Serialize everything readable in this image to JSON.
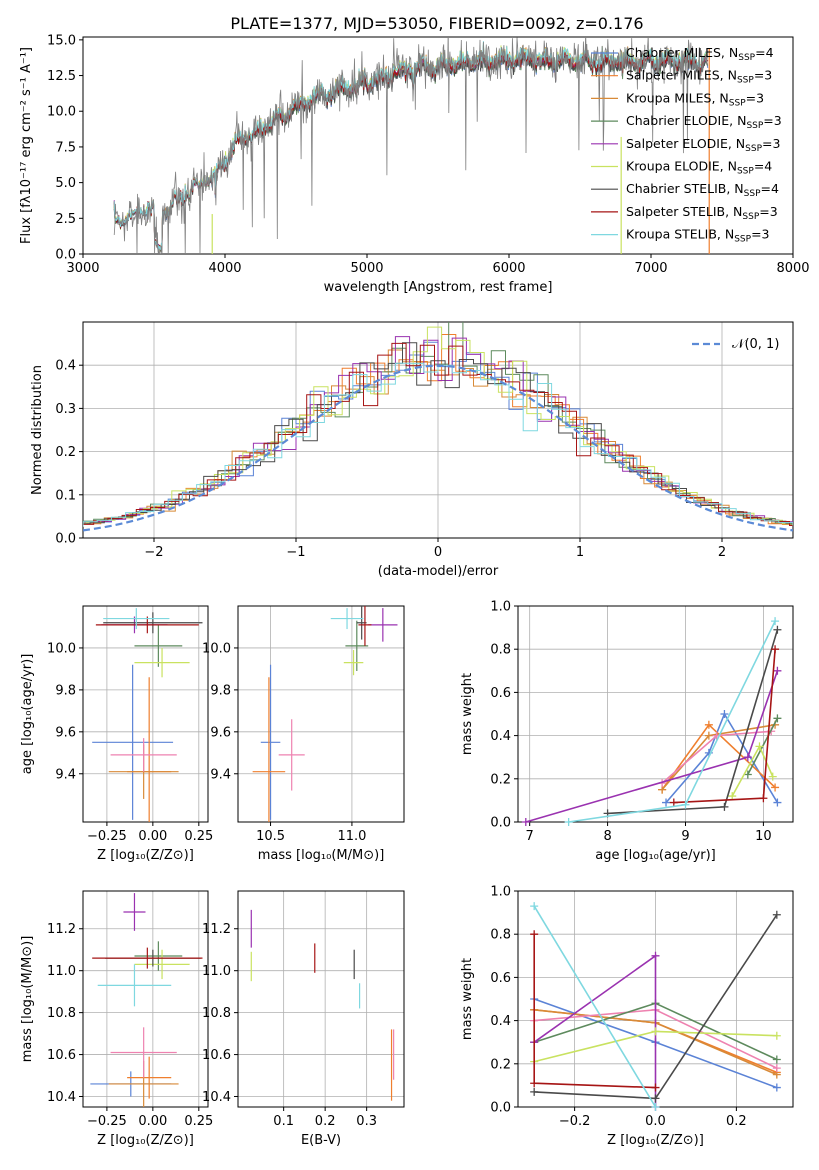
{
  "figure_title": "PLATE=1377, MJD=53050, FIBERID=0092, z=0.176",
  "colors": {
    "Chabrier MILES": "#5b83d6",
    "Salpeter MILES": "#ef7f2e",
    "Kroupa MILES": "#d88a38",
    "Chabrier ELODIE": "#5d8a5d",
    "Salpeter ELODIE": "#9a32b0",
    "Kroupa ELODIE": "#c9e260",
    "Chabrier STELIB": "#4a4a4a",
    "Salpeter STELIB": "#a61515",
    "Kroupa STELIB": "#7fd8e0",
    "data": "#808080",
    "pink": "#ee82b0",
    "normal": "#5b8ad6",
    "grid": "#b0b0b0"
  },
  "chart_data": [
    {
      "type": "line",
      "title": "PLATE=1377, MJD=53050, FIBERID=0092, z=0.176",
      "xlabel": "wavelength [Angstrom, rest frame]",
      "ylabel": "Flux [fλ10⁻¹⁷ erg cm⁻² s⁻¹ A⁻¹]",
      "xlim": [
        3000,
        8000
      ],
      "ylim": [
        0,
        15.2
      ],
      "xticks": [
        "3000",
        "4000",
        "5000",
        "6000",
        "7000",
        "8000"
      ],
      "yticks": [
        "0.0",
        "2.5",
        "5.0",
        "7.5",
        "10.0",
        "12.5",
        "15.0"
      ],
      "legend_position": "right",
      "continuum": {
        "x": [
          3220,
          3400,
          3500,
          3600,
          3700,
          3800,
          3900,
          4000,
          4100,
          4200,
          4300,
          4400,
          4500,
          4600,
          4700,
          4800,
          4900,
          5000,
          5100,
          5200,
          5300,
          5400,
          5500,
          5600,
          5700,
          5800,
          5900,
          6000,
          6100,
          6200,
          6300,
          6400,
          6500,
          6600,
          6700,
          6800,
          7000,
          7200,
          7400
        ],
        "y": [
          2.3,
          3.0,
          3.1,
          3.1,
          4.0,
          4.8,
          5.3,
          6.5,
          8.0,
          8.5,
          9.1,
          9.8,
          10.4,
          10.9,
          11.3,
          11.6,
          11.9,
          12.2,
          12.4,
          12.8,
          13.0,
          13.2,
          13.3,
          13.4,
          13.5,
          13.6,
          13.6,
          13.7,
          13.8,
          13.7,
          13.6,
          13.7,
          13.6,
          13.6,
          13.6,
          13.6,
          13.6,
          13.6,
          13.5
        ]
      },
      "series": [
        {
          "name": "Chabrier MILES",
          "nssp": "4"
        },
        {
          "name": "Salpeter MILES",
          "nssp": "3"
        },
        {
          "name": "Kroupa MILES",
          "nssp": "3"
        },
        {
          "name": "Chabrier ELODIE",
          "nssp": "3"
        },
        {
          "name": "Salpeter ELODIE",
          "nssp": "3"
        },
        {
          "name": "Kroupa ELODIE",
          "nssp": "4"
        },
        {
          "name": "Chabrier STELIB",
          "nssp": "4"
        },
        {
          "name": "Salpeter STELIB",
          "nssp": "3"
        },
        {
          "name": "Kroupa STELIB",
          "nssp": "3"
        }
      ]
    },
    {
      "type": "line",
      "xlabel": "(data-model)/error",
      "ylabel": "Normed distribution",
      "xlim": [
        -2.5,
        2.5
      ],
      "ylim": [
        0,
        0.5
      ],
      "xticks": [
        "−2",
        "−1",
        "0",
        "1",
        "2"
      ],
      "yticks": [
        "0.0",
        "0.1",
        "0.2",
        "0.3",
        "0.4"
      ],
      "legend_label": "𝒩(0, 1)",
      "legend_position": "top-right",
      "bin_width": 0.1
    },
    {
      "type": "scatter",
      "xlabel": "Z [log₁₀(Z/Z⊙)]",
      "ylabel": "age  [log₁₀(age/yr)]",
      "xlim": [
        -0.38,
        0.3
      ],
      "ylim": [
        9.17,
        10.2
      ],
      "xticks": [
        "−0.25",
        "0.00",
        "0.25"
      ],
      "xtick_values": [
        -0.25,
        0,
        0.25
      ],
      "yticks": [
        "9.4",
        "9.6",
        "9.8",
        "10.0"
      ],
      "ytick_values": [
        9.4,
        9.6,
        9.8,
        10.0
      ],
      "points": [
        {
          "series": "Chabrier MILES",
          "x": -0.11,
          "y": 9.55,
          "xerr": 0.22,
          "yerr": 0.37
        },
        {
          "series": "Salpeter MILES",
          "x": -0.02,
          "y": 9.41,
          "xerr": 0.12,
          "yerr": 0.45
        },
        {
          "series": "Kroupa MILES",
          "x": -0.05,
          "y": 9.41,
          "xerr": 0.19,
          "yerr": 0.13
        },
        {
          "series": "pink",
          "x": -0.05,
          "y": 9.49,
          "xerr": 0.18,
          "yerr": 0.08
        },
        {
          "series": "Chabrier ELODIE",
          "x": 0.03,
          "y": 10.01,
          "xerr": 0.13,
          "yerr": 0.1
        },
        {
          "series": "Salpeter ELODIE",
          "x": -0.1,
          "y": 10.11,
          "xerr": 0.18,
          "yerr": 0.04
        },
        {
          "series": "Kroupa ELODIE",
          "x": 0.05,
          "y": 9.93,
          "xerr": 0.15,
          "yerr": 0.07
        },
        {
          "series": "Chabrier STELIB",
          "x": 0.0,
          "y": 10.12,
          "xerr": 0.27,
          "yerr": 0.05
        },
        {
          "series": "Salpeter STELIB",
          "x": -0.03,
          "y": 10.11,
          "xerr": 0.28,
          "yerr": 0.04
        },
        {
          "series": "Kroupa STELIB",
          "x": -0.09,
          "y": 10.14,
          "xerr": 0.18,
          "yerr": 0.05
        }
      ]
    },
    {
      "type": "scatter",
      "xlabel": "mass [log₁₀(M/M⊙)]",
      "xlim": [
        10.3,
        11.32
      ],
      "ylim": [
        9.17,
        10.2
      ],
      "xticks": [
        "10.5",
        "11.0"
      ],
      "xtick_values": [
        10.5,
        11.0
      ],
      "yticks": [
        "9.4",
        "9.6",
        "9.8",
        "10.0"
      ],
      "ytick_values": [
        9.4,
        9.6,
        9.8,
        10.0
      ],
      "points": [
        {
          "series": "Chabrier MILES",
          "x": 10.5,
          "y": 9.55,
          "xerr": 0.06,
          "yerr": 0.37
        },
        {
          "series": "Salpeter MILES",
          "x": 10.49,
          "y": 9.41,
          "xerr": 0.1,
          "yerr": 0.45
        },
        {
          "series": "pink",
          "x": 10.63,
          "y": 9.49,
          "xerr": 0.08,
          "yerr": 0.17
        },
        {
          "series": "Chabrier ELODIE",
          "x": 11.03,
          "y": 10.01,
          "xerr": 0.07,
          "yerr": 0.12
        },
        {
          "series": "Salpeter ELODIE",
          "x": 11.19,
          "y": 10.11,
          "xerr": 0.09,
          "yerr": 0.08
        },
        {
          "series": "Kroupa ELODIE",
          "x": 11.01,
          "y": 9.93,
          "xerr": 0.06,
          "yerr": 0.06
        },
        {
          "series": "Chabrier STELIB",
          "x": 11.06,
          "y": 10.12,
          "xerr": 0.03,
          "yerr": 0.08
        },
        {
          "series": "Salpeter STELIB",
          "x": 11.08,
          "y": 10.11,
          "xerr": 0.04,
          "yerr": 0.1
        },
        {
          "series": "Kroupa STELIB",
          "x": 10.97,
          "y": 10.14,
          "xerr": 0.1,
          "yerr": 0.05
        }
      ]
    },
    {
      "type": "line",
      "xlabel": "age  [log₁₀(age/yr)]",
      "ylabel": "mass weight",
      "xlim": [
        6.85,
        10.38
      ],
      "ylim": [
        0,
        1.0
      ],
      "xticks": [
        "7",
        "8",
        "9",
        "10"
      ],
      "xtick_values": [
        7,
        8,
        9,
        10
      ],
      "yticks": [
        "0.0",
        "0.2",
        "0.4",
        "0.6",
        "0.8",
        "1.0"
      ],
      "ytick_values": [
        0,
        0.2,
        0.4,
        0.6,
        0.8,
        1.0
      ],
      "series": [
        {
          "name": "Chabrier MILES",
          "x": [
            8.75,
            9.3,
            9.5,
            10.18
          ],
          "y": [
            0.09,
            0.32,
            0.5,
            0.09
          ]
        },
        {
          "name": "Salpeter MILES",
          "x": [
            8.7,
            9.3,
            10.15
          ],
          "y": [
            0.15,
            0.45,
            0.16
          ]
        },
        {
          "name": "Kroupa MILES",
          "x": [
            8.7,
            9.3,
            10.15
          ],
          "y": [
            0.15,
            0.4,
            0.45
          ]
        },
        {
          "name": "pink",
          "x": [
            8.7,
            9.4,
            10.1
          ],
          "y": [
            0.18,
            0.4,
            0.42
          ]
        },
        {
          "name": "Chabrier ELODIE",
          "x": [
            9.8,
            10.18
          ],
          "y": [
            0.22,
            0.48
          ]
        },
        {
          "name": "Salpeter ELODIE",
          "x": [
            6.95,
            9.8,
            10.18
          ],
          "y": [
            0.0,
            0.3,
            0.7
          ]
        },
        {
          "name": "Kroupa ELODIE",
          "x": [
            9.6,
            9.95,
            10.12
          ],
          "y": [
            0.12,
            0.35,
            0.21
          ]
        },
        {
          "name": "Chabrier STELIB",
          "x": [
            8.0,
            9.5,
            10.18
          ],
          "y": [
            0.04,
            0.07,
            0.89
          ]
        },
        {
          "name": "Salpeter STELIB",
          "x": [
            8.85,
            10.0,
            10.15
          ],
          "y": [
            0.09,
            0.11,
            0.8
          ]
        },
        {
          "name": "Kroupa STELIB",
          "x": [
            7.5,
            9.0,
            10.15
          ],
          "y": [
            0.0,
            0.08,
            0.93
          ]
        }
      ]
    },
    {
      "type": "scatter",
      "xlabel": "Z [log₁₀(Z/Z⊙)]",
      "ylabel": "mass [log₁₀(M/M⊙)]",
      "xlim": [
        -0.38,
        0.3
      ],
      "ylim": [
        10.35,
        11.38
      ],
      "xticks": [
        "−0.25",
        "0.00",
        "0.25"
      ],
      "xtick_values": [
        -0.25,
        0,
        0.25
      ],
      "yticks": [
        "10.4",
        "10.6",
        "10.8",
        "11.0",
        "11.2"
      ],
      "ytick_values": [
        10.4,
        10.6,
        10.8,
        11.0,
        11.2
      ],
      "points": [
        {
          "series": "Chabrier MILES",
          "x": -0.12,
          "y": 10.46,
          "xerr": 0.22,
          "yerr": 0.06
        },
        {
          "series": "Salpeter MILES",
          "x": -0.02,
          "y": 10.49,
          "xerr": 0.12,
          "yerr": 0.1
        },
        {
          "series": "Kroupa MILES",
          "x": -0.05,
          "y": 10.46,
          "xerr": 0.19,
          "yerr": 0.11
        },
        {
          "series": "pink",
          "x": -0.05,
          "y": 10.61,
          "xerr": 0.18,
          "yerr": 0.12
        },
        {
          "series": "Chabrier ELODIE",
          "x": 0.03,
          "y": 11.07,
          "xerr": 0.13,
          "yerr": 0.07
        },
        {
          "series": "Salpeter ELODIE",
          "x": -0.1,
          "y": 11.28,
          "xerr": 0.06,
          "yerr": 0.09
        },
        {
          "series": "Kroupa ELODIE",
          "x": 0.05,
          "y": 11.03,
          "xerr": 0.15,
          "yerr": 0.07
        },
        {
          "series": "Chabrier STELIB",
          "x": 0.0,
          "y": 11.06,
          "xerr": 0.26,
          "yerr": 0.04
        },
        {
          "series": "Salpeter STELIB",
          "x": -0.03,
          "y": 11.06,
          "xerr": 0.3,
          "yerr": 0.05
        },
        {
          "series": "Kroupa STELIB",
          "x": -0.1,
          "y": 10.93,
          "xerr": 0.2,
          "yerr": 0.1
        }
      ]
    },
    {
      "type": "scatter",
      "xlabel": "E(B-V)",
      "xlim": [
        -0.01,
        0.39
      ],
      "ylim": [
        10.35,
        11.38
      ],
      "xticks": [
        "0.1",
        "0.2",
        "0.3"
      ],
      "xtick_values": [
        0.1,
        0.2,
        0.3
      ],
      "yticks": [
        "10.4",
        "10.6",
        "10.8",
        "11.0",
        "11.2"
      ],
      "ytick_values": [
        10.4,
        10.6,
        10.8,
        11.0,
        11.2
      ],
      "points": [
        {
          "series": "Salpeter ELODIE",
          "x": 0.022,
          "y": 11.2,
          "yerr": 0.09
        },
        {
          "series": "Kroupa ELODIE",
          "x": 0.022,
          "y": 11.02,
          "yerr": 0.07
        },
        {
          "series": "Salpeter STELIB",
          "x": 0.175,
          "y": 11.06,
          "yerr": 0.07
        },
        {
          "series": "Chabrier STELIB",
          "x": 0.27,
          "y": 11.03,
          "yerr": 0.07
        },
        {
          "series": "Kroupa STELIB",
          "x": 0.283,
          "y": 10.88,
          "yerr": 0.06
        },
        {
          "series": "Salpeter MILES",
          "x": 0.36,
          "y": 10.55,
          "yerr": 0.17
        },
        {
          "series": "pink",
          "x": 0.365,
          "y": 10.6,
          "yerr": 0.12
        }
      ]
    },
    {
      "type": "line",
      "xlabel": "Z [log₁₀(Z/Z⊙)]",
      "ylabel": "mass weight",
      "xlim": [
        -0.34,
        0.34
      ],
      "ylim": [
        0,
        1.0
      ],
      "xticks": [
        "−0.2",
        "0.0",
        "0.2"
      ],
      "xtick_values": [
        -0.2,
        0,
        0.2
      ],
      "yticks": [
        "0.0",
        "0.2",
        "0.4",
        "0.6",
        "0.8",
        "1.0"
      ],
      "ytick_values": [
        0,
        0.2,
        0.4,
        0.6,
        0.8,
        1.0
      ],
      "series": [
        {
          "name": "Chabrier MILES",
          "x": [
            -0.3,
            0.0,
            0.0,
            0.3
          ],
          "y": [
            0.5,
            0.3,
            0.3,
            0.09
          ]
        },
        {
          "name": "Salpeter MILES",
          "x": [
            -0.3,
            0.0,
            0.3
          ],
          "y": [
            0.45,
            0.39,
            0.16
          ]
        },
        {
          "name": "Kroupa MILES",
          "x": [
            -0.3,
            0.0,
            0.3
          ],
          "y": [
            0.45,
            0.39,
            0.15
          ]
        },
        {
          "name": "pink",
          "x": [
            -0.3,
            0.0,
            0.3
          ],
          "y": [
            0.4,
            0.45,
            0.18
          ]
        },
        {
          "name": "Chabrier ELODIE",
          "x": [
            -0.3,
            0.0,
            0.3
          ],
          "y": [
            0.3,
            0.48,
            0.22
          ]
        },
        {
          "name": "Salpeter ELODIE",
          "x": [
            -0.3,
            0.0,
            0.0
          ],
          "y": [
            0.3,
            0.7,
            0.0
          ]
        },
        {
          "name": "Kroupa ELODIE",
          "x": [
            -0.3,
            0.0,
            0.3
          ],
          "y": [
            0.21,
            0.35,
            0.33
          ]
        },
        {
          "name": "Chabrier STELIB",
          "x": [
            -0.3,
            0.0,
            0.3
          ],
          "y": [
            0.07,
            0.04,
            0.89
          ]
        },
        {
          "name": "Salpeter STELIB",
          "x": [
            -0.3,
            -0.3,
            0.0
          ],
          "y": [
            0.8,
            0.11,
            0.09
          ]
        },
        {
          "name": "Kroupa STELIB",
          "x": [
            -0.3,
            0.0
          ],
          "y": [
            0.93,
            0.0
          ]
        }
      ]
    }
  ]
}
